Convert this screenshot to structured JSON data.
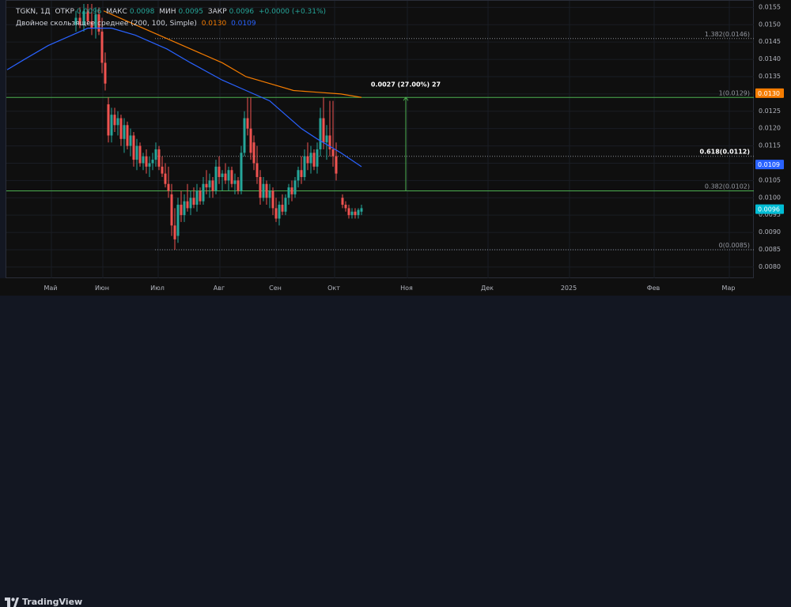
{
  "legend": {
    "symbol": "TGKN, 1Д",
    "open_label": "ОТКР",
    "open": "0.0096",
    "high_label": "МАКС",
    "high": "0.0098",
    "low_label": "МИН",
    "low": "0.0095",
    "close_label": "ЗАКР",
    "close": "0.0096",
    "change": "+0.0000 (+0.31%)",
    "indicator_name": "Двойное скользящее среднее (200, 100, Simple)",
    "ma200_value": "0.0130",
    "ma100_value": "0.0109"
  },
  "colors": {
    "bg": "#0f0f0f",
    "up": "#26a69a",
    "down": "#ef5350",
    "ma200": "#f57c00",
    "ma100": "#2962ff",
    "fib_line": "#4caf50",
    "price_tag": "#00bcd4"
  },
  "brand": {
    "name": "TradingView",
    "icon": "tradingview-logo-icon"
  },
  "chart_data": {
    "type": "candlestick",
    "y_ticks": [
      "0.0155",
      "0.0150",
      "0.0145",
      "0.0140",
      "0.0135",
      "0.0130",
      "0.0125",
      "0.0120",
      "0.0115",
      "0.0110",
      "0.0105",
      "0.0100",
      "0.0095",
      "0.0090",
      "0.0085",
      "0.0080"
    ],
    "y_range": [
      0.0077,
      0.0156
    ],
    "x_ticks": [
      "Май",
      "Июн",
      "Июл",
      "Авг",
      "Сен",
      "Окт",
      "Ноя",
      "Дек",
      "2025",
      "Фев",
      "Мар"
    ],
    "fib_levels": [
      {
        "label": "1.382(0.0146)",
        "value": 0.0146,
        "style": "dotted"
      },
      {
        "label": "1(0.0129)",
        "value": 0.0129,
        "style": "solid"
      },
      {
        "label": "0.618(0.0112)",
        "value": 0.0112,
        "style": "dotted"
      },
      {
        "label": "0.382(0.0102)",
        "value": 0.0102,
        "style": "solid"
      },
      {
        "label": "0(0.0085)",
        "value": 0.0085,
        "style": "dotted"
      }
    ],
    "price_tags": [
      {
        "label": "0.0130",
        "value": 0.013,
        "color": "#f57c00"
      },
      {
        "label": "0.0109",
        "value": 0.01094,
        "color": "#2962ff"
      },
      {
        "label": "0.0096",
        "value": 0.00965,
        "color": "#00bcd4"
      }
    ],
    "measure": {
      "label": "0.0027 (27.00%) 27",
      "from": 0.0102,
      "to": 0.0129
    },
    "ma200": {
      "name": "MA 200",
      "points": [
        [
          130,
          0.0154
        ],
        [
          160,
          0.0151
        ],
        [
          200,
          0.0147
        ],
        [
          240,
          0.0143
        ],
        [
          280,
          0.0139
        ],
        [
          310,
          0.0135
        ],
        [
          340,
          0.0133
        ],
        [
          370,
          0.0131
        ],
        [
          400,
          0.01305
        ],
        [
          430,
          0.013
        ],
        [
          456,
          0.0129
        ]
      ]
    },
    "ma100": {
      "name": "MA 100",
      "points": [
        [
          8,
          0.0137
        ],
        [
          30,
          0.014
        ],
        [
          60,
          0.0144
        ],
        [
          90,
          0.0147
        ],
        [
          110,
          0.0149
        ],
        [
          140,
          0.0149
        ],
        [
          170,
          0.0147
        ],
        [
          210,
          0.0143
        ],
        [
          240,
          0.0139
        ],
        [
          280,
          0.0134
        ],
        [
          310,
          0.0131
        ],
        [
          340,
          0.0128
        ],
        [
          360,
          0.0124
        ],
        [
          380,
          0.012
        ],
        [
          400,
          0.0117
        ],
        [
          430,
          0.0113
        ],
        [
          456,
          0.0109
        ]
      ]
    },
    "candles": [
      {
        "x": 95,
        "o": 0.015,
        "h": 0.0154,
        "l": 0.0148,
        "c": 0.0152
      },
      {
        "x": 100,
        "o": 0.0152,
        "h": 0.0155,
        "l": 0.0149,
        "c": 0.015
      },
      {
        "x": 105,
        "o": 0.015,
        "h": 0.0156,
        "l": 0.0148,
        "c": 0.0154
      },
      {
        "x": 110,
        "o": 0.0154,
        "h": 0.0156,
        "l": 0.015,
        "c": 0.0151
      },
      {
        "x": 115,
        "o": 0.0151,
        "h": 0.0156,
        "l": 0.0147,
        "c": 0.0149
      },
      {
        "x": 120,
        "o": 0.0149,
        "h": 0.0155,
        "l": 0.0146,
        "c": 0.0153
      },
      {
        "x": 124,
        "o": 0.0153,
        "h": 0.0155,
        "l": 0.0147,
        "c": 0.0148
      },
      {
        "x": 128,
        "o": 0.0148,
        "h": 0.0152,
        "l": 0.0136,
        "c": 0.0139
      },
      {
        "x": 132,
        "o": 0.0139,
        "h": 0.0142,
        "l": 0.0131,
        "c": 0.0133
      },
      {
        "x": 136,
        "o": 0.0127,
        "h": 0.0129,
        "l": 0.0116,
        "c": 0.0118
      },
      {
        "x": 140,
        "o": 0.0118,
        "h": 0.0126,
        "l": 0.0116,
        "c": 0.0124
      },
      {
        "x": 144,
        "o": 0.0124,
        "h": 0.0126,
        "l": 0.0119,
        "c": 0.0121
      },
      {
        "x": 148,
        "o": 0.0121,
        "h": 0.0125,
        "l": 0.0118,
        "c": 0.0123
      },
      {
        "x": 152,
        "o": 0.0123,
        "h": 0.0124,
        "l": 0.0115,
        "c": 0.0117
      },
      {
        "x": 156,
        "o": 0.0117,
        "h": 0.0123,
        "l": 0.0113,
        "c": 0.0121
      },
      {
        "x": 160,
        "o": 0.0121,
        "h": 0.0122,
        "l": 0.0114,
        "c": 0.0115
      },
      {
        "x": 164,
        "o": 0.0115,
        "h": 0.012,
        "l": 0.0112,
        "c": 0.0118
      },
      {
        "x": 168,
        "o": 0.0118,
        "h": 0.0119,
        "l": 0.0109,
        "c": 0.0111
      },
      {
        "x": 172,
        "o": 0.0111,
        "h": 0.0117,
        "l": 0.0108,
        "c": 0.0115
      },
      {
        "x": 176,
        "o": 0.0115,
        "h": 0.0116,
        "l": 0.0109,
        "c": 0.011
      },
      {
        "x": 180,
        "o": 0.011,
        "h": 0.0113,
        "l": 0.0108,
        "c": 0.0112
      },
      {
        "x": 184,
        "o": 0.0112,
        "h": 0.0114,
        "l": 0.0107,
        "c": 0.0109
      },
      {
        "x": 188,
        "o": 0.0109,
        "h": 0.0112,
        "l": 0.0106,
        "c": 0.011
      },
      {
        "x": 192,
        "o": 0.011,
        "h": 0.0113,
        "l": 0.0108,
        "c": 0.0111
      },
      {
        "x": 196,
        "o": 0.0111,
        "h": 0.0116,
        "l": 0.0109,
        "c": 0.0114
      },
      {
        "x": 200,
        "o": 0.0114,
        "h": 0.0115,
        "l": 0.0108,
        "c": 0.0109
      },
      {
        "x": 204,
        "o": 0.0109,
        "h": 0.0112,
        "l": 0.0106,
        "c": 0.0107
      },
      {
        "x": 208,
        "o": 0.0107,
        "h": 0.011,
        "l": 0.0103,
        "c": 0.0104
      },
      {
        "x": 212,
        "o": 0.0104,
        "h": 0.0109,
        "l": 0.01,
        "c": 0.0102
      },
      {
        "x": 216,
        "o": 0.0101,
        "h": 0.0104,
        "l": 0.0089,
        "c": 0.0092
      },
      {
        "x": 220,
        "o": 0.0092,
        "h": 0.0097,
        "l": 0.0085,
        "c": 0.0088
      },
      {
        "x": 224,
        "o": 0.0089,
        "h": 0.01,
        "l": 0.0087,
        "c": 0.0098
      },
      {
        "x": 228,
        "o": 0.0098,
        "h": 0.0102,
        "l": 0.0093,
        "c": 0.0095
      },
      {
        "x": 232,
        "o": 0.0095,
        "h": 0.0101,
        "l": 0.0093,
        "c": 0.0099
      },
      {
        "x": 236,
        "o": 0.0099,
        "h": 0.0104,
        "l": 0.0096,
        "c": 0.0097
      },
      {
        "x": 240,
        "o": 0.0097,
        "h": 0.0102,
        "l": 0.0095,
        "c": 0.01
      },
      {
        "x": 244,
        "o": 0.01,
        "h": 0.0103,
        "l": 0.0097,
        "c": 0.0098
      },
      {
        "x": 248,
        "o": 0.0098,
        "h": 0.0104,
        "l": 0.0096,
        "c": 0.0102
      },
      {
        "x": 252,
        "o": 0.0102,
        "h": 0.0103,
        "l": 0.0098,
        "c": 0.0099
      },
      {
        "x": 256,
        "o": 0.0099,
        "h": 0.0106,
        "l": 0.0098,
        "c": 0.0104
      },
      {
        "x": 260,
        "o": 0.0104,
        "h": 0.0108,
        "l": 0.0101,
        "c": 0.0103
      },
      {
        "x": 264,
        "o": 0.0103,
        "h": 0.0107,
        "l": 0.01,
        "c": 0.0105
      },
      {
        "x": 268,
        "o": 0.0105,
        "h": 0.0106,
        "l": 0.01,
        "c": 0.0102
      },
      {
        "x": 272,
        "o": 0.0102,
        "h": 0.0111,
        "l": 0.0101,
        "c": 0.0109
      },
      {
        "x": 276,
        "o": 0.0109,
        "h": 0.0112,
        "l": 0.0104,
        "c": 0.0106
      },
      {
        "x": 280,
        "o": 0.0106,
        "h": 0.0108,
        "l": 0.0102,
        "c": 0.0107
      },
      {
        "x": 284,
        "o": 0.0107,
        "h": 0.011,
        "l": 0.0104,
        "c": 0.0105
      },
      {
        "x": 288,
        "o": 0.0105,
        "h": 0.0109,
        "l": 0.0102,
        "c": 0.0108
      },
      {
        "x": 292,
        "o": 0.0108,
        "h": 0.0109,
        "l": 0.0103,
        "c": 0.0104
      },
      {
        "x": 296,
        "o": 0.0104,
        "h": 0.0107,
        "l": 0.0101,
        "c": 0.0105
      },
      {
        "x": 300,
        "o": 0.0105,
        "h": 0.0106,
        "l": 0.0101,
        "c": 0.0102
      },
      {
        "x": 304,
        "o": 0.0102,
        "h": 0.0115,
        "l": 0.0101,
        "c": 0.0113
      },
      {
        "x": 308,
        "o": 0.0113,
        "h": 0.0125,
        "l": 0.0112,
        "c": 0.0123
      },
      {
        "x": 312,
        "o": 0.0123,
        "h": 0.0129,
        "l": 0.0118,
        "c": 0.012
      },
      {
        "x": 316,
        "o": 0.012,
        "h": 0.0129,
        "l": 0.0111,
        "c": 0.0113
      },
      {
        "x": 320,
        "o": 0.0116,
        "h": 0.0118,
        "l": 0.0108,
        "c": 0.011
      },
      {
        "x": 324,
        "o": 0.011,
        "h": 0.0115,
        "l": 0.0104,
        "c": 0.0106
      },
      {
        "x": 328,
        "o": 0.0106,
        "h": 0.0108,
        "l": 0.0098,
        "c": 0.01
      },
      {
        "x": 332,
        "o": 0.01,
        "h": 0.0106,
        "l": 0.0099,
        "c": 0.0104
      },
      {
        "x": 336,
        "o": 0.0104,
        "h": 0.0105,
        "l": 0.0098,
        "c": 0.01
      },
      {
        "x": 340,
        "o": 0.01,
        "h": 0.0104,
        "l": 0.0097,
        "c": 0.0102
      },
      {
        "x": 344,
        "o": 0.0102,
        "h": 0.0103,
        "l": 0.0095,
        "c": 0.0097
      },
      {
        "x": 348,
        "o": 0.0097,
        "h": 0.01,
        "l": 0.0093,
        "c": 0.0094
      },
      {
        "x": 352,
        "o": 0.0094,
        "h": 0.0099,
        "l": 0.0092,
        "c": 0.0098
      },
      {
        "x": 356,
        "o": 0.0098,
        "h": 0.0101,
        "l": 0.0095,
        "c": 0.0096
      },
      {
        "x": 360,
        "o": 0.0096,
        "h": 0.0101,
        "l": 0.0095,
        "c": 0.01
      },
      {
        "x": 364,
        "o": 0.01,
        "h": 0.0104,
        "l": 0.0098,
        "c": 0.0103
      },
      {
        "x": 368,
        "o": 0.0103,
        "h": 0.0105,
        "l": 0.0099,
        "c": 0.0101
      },
      {
        "x": 372,
        "o": 0.0101,
        "h": 0.0106,
        "l": 0.01,
        "c": 0.0105
      },
      {
        "x": 376,
        "o": 0.0105,
        "h": 0.0109,
        "l": 0.0103,
        "c": 0.0108
      },
      {
        "x": 380,
        "o": 0.0108,
        "h": 0.0112,
        "l": 0.0104,
        "c": 0.0106
      },
      {
        "x": 384,
        "o": 0.0106,
        "h": 0.0114,
        "l": 0.0105,
        "c": 0.0112
      },
      {
        "x": 388,
        "o": 0.0112,
        "h": 0.0116,
        "l": 0.0108,
        "c": 0.011
      },
      {
        "x": 392,
        "o": 0.011,
        "h": 0.0115,
        "l": 0.0107,
        "c": 0.0113
      },
      {
        "x": 396,
        "o": 0.0113,
        "h": 0.0114,
        "l": 0.0108,
        "c": 0.0109
      },
      {
        "x": 400,
        "o": 0.0109,
        "h": 0.0116,
        "l": 0.0107,
        "c": 0.0114
      },
      {
        "x": 404,
        "o": 0.0114,
        "h": 0.0126,
        "l": 0.0112,
        "c": 0.0123
      },
      {
        "x": 408,
        "o": 0.0123,
        "h": 0.0129,
        "l": 0.0114,
        "c": 0.0116
      },
      {
        "x": 412,
        "o": 0.0116,
        "h": 0.0121,
        "l": 0.0111,
        "c": 0.0118
      },
      {
        "x": 416,
        "o": 0.0118,
        "h": 0.0128,
        "l": 0.0112,
        "c": 0.0114
      },
      {
        "x": 420,
        "o": 0.0114,
        "h": 0.0128,
        "l": 0.0109,
        "c": 0.0112
      },
      {
        "x": 424,
        "o": 0.0112,
        "h": 0.0116,
        "l": 0.0105,
        "c": 0.0107
      },
      {
        "x": 432,
        "o": 0.01,
        "h": 0.0101,
        "l": 0.0097,
        "c": 0.0098
      },
      {
        "x": 436,
        "o": 0.0098,
        "h": 0.0099,
        "l": 0.0096,
        "c": 0.0097
      },
      {
        "x": 440,
        "o": 0.0097,
        "h": 0.0098,
        "l": 0.0094,
        "c": 0.0095
      },
      {
        "x": 444,
        "o": 0.0095,
        "h": 0.0097,
        "l": 0.0094,
        "c": 0.0096
      },
      {
        "x": 448,
        "o": 0.0096,
        "h": 0.0097,
        "l": 0.0094,
        "c": 0.0095
      },
      {
        "x": 452,
        "o": 0.0095,
        "h": 0.0097,
        "l": 0.0094,
        "c": 0.00965
      },
      {
        "x": 456,
        "o": 0.0096,
        "h": 0.0098,
        "l": 0.0095,
        "c": 0.0097
      }
    ]
  }
}
